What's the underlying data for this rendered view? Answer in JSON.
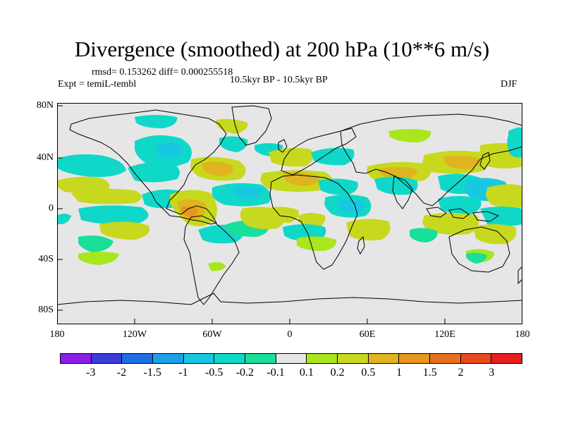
{
  "title": "Divergence (smoothed) at 200 hPa (10**6 m/s)",
  "stats": "rmsd= 0.153262 diff= 0.000255518",
  "experiment": "Expt = temiL-tembl",
  "period": "10.5kyr BP - 10.5kyr BP",
  "season": "DJF",
  "y_axis_labels": [
    "80N",
    "40N",
    "0",
    "40S",
    "80S"
  ],
  "x_axis_labels": [
    "180",
    "120W",
    "60W",
    "0",
    "60E",
    "120E",
    "180"
  ],
  "colorbar": {
    "colors": [
      "#8a1ee6",
      "#3c3cd8",
      "#1e6ee6",
      "#1ea0e6",
      "#18c8e0",
      "#10d8c8",
      "#18e09a",
      "#e6e6e6",
      "#a8e61e",
      "#c8d81e",
      "#e0b41e",
      "#e6961e",
      "#e6701e",
      "#e64a1e",
      "#e61e1e"
    ],
    "labels": [
      "-3",
      "-2",
      "-1.5",
      "-1",
      "-0.5",
      "-0.2",
      "-0.1",
      "0.1",
      "0.2",
      "0.5",
      "1",
      "1.5",
      "2",
      "3"
    ]
  },
  "map_colors": {
    "background": "#e6e6e6",
    "coast": "#000000",
    "pos_weak": "#a8e61e",
    "pos_mid": "#c8d81e",
    "pos_strong": "#e0b41e",
    "pos_max": "#e6961e",
    "neg_weak": "#18e09a",
    "neg_mid": "#10d8c8",
    "neg_strong": "#18c8e0"
  }
}
